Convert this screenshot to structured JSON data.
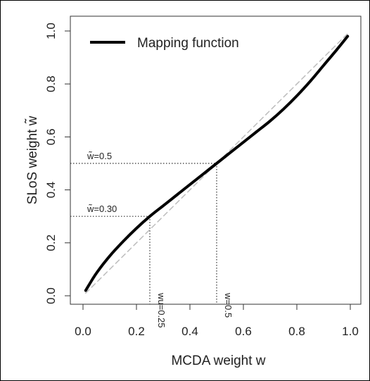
{
  "chart_data": {
    "type": "line",
    "xlabel": "MCDA weight w",
    "ylabel": "SLoS weight w̃",
    "xlim": [
      0.0,
      1.0
    ],
    "ylim": [
      0.0,
      1.0
    ],
    "grid": false,
    "legend_position": "top-left",
    "x_ticks": [
      "0.0",
      "0.2",
      "0.4",
      "0.6",
      "0.8",
      "1.0"
    ],
    "y_ticks": [
      "0.0",
      "0.2",
      "0.4",
      "0.6",
      "0.8",
      "1.0"
    ],
    "series": [
      {
        "name": "Mapping function",
        "style": "solid",
        "color": "#000000",
        "x": [
          0.01,
          0.05,
          0.1,
          0.15,
          0.2,
          0.25,
          0.3,
          0.35,
          0.4,
          0.45,
          0.5,
          0.55,
          0.6,
          0.65,
          0.7,
          0.75,
          0.8,
          0.85,
          0.9,
          0.95,
          0.99
        ],
        "y": [
          0.02,
          0.085,
          0.15,
          0.205,
          0.255,
          0.3,
          0.34,
          0.38,
          0.42,
          0.46,
          0.5,
          0.54,
          0.58,
          0.62,
          0.66,
          0.705,
          0.755,
          0.81,
          0.87,
          0.93,
          0.98
        ]
      },
      {
        "style": "dashed",
        "color": "#bdbdbd",
        "x": [
          0.01,
          0.99
        ],
        "y": [
          0.01,
          0.99
        ]
      }
    ],
    "annotations": [
      {
        "text": "w̃=0.5",
        "type": "hline",
        "y": 0.5,
        "x_end": 0.5
      },
      {
        "text": "w̃=0.30",
        "type": "hline",
        "y": 0.3,
        "x_end": 0.25
      },
      {
        "text": "wu=0.25",
        "type": "vline",
        "x": 0.25,
        "y_end": 0.3
      },
      {
        "text": "w=0.5",
        "type": "vline",
        "x": 0.5,
        "y_end": 0.5
      }
    ]
  }
}
